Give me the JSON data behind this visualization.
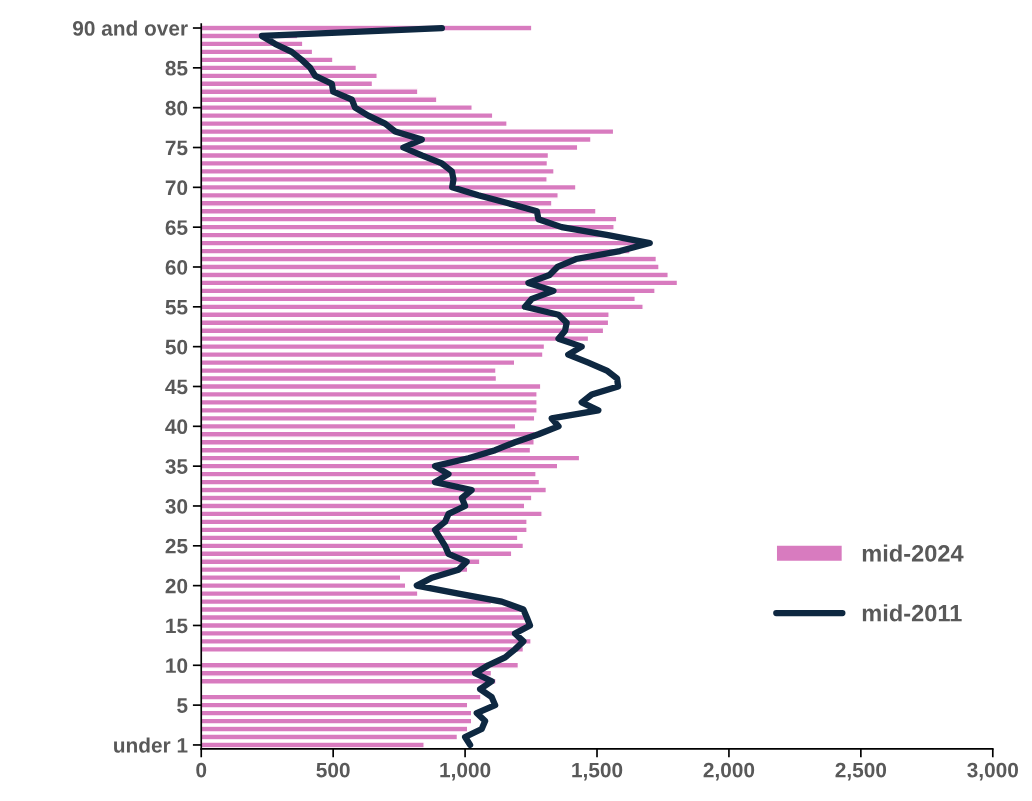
{
  "chart_data": {
    "type": "bar",
    "orientation": "horizontal",
    "categories": [
      "90 and over",
      null,
      null,
      null,
      null,
      "85",
      null,
      null,
      null,
      null,
      "80",
      null,
      null,
      null,
      null,
      "75",
      null,
      null,
      null,
      null,
      "70",
      null,
      null,
      null,
      null,
      "65",
      null,
      null,
      null,
      null,
      "60",
      null,
      null,
      null,
      null,
      "55",
      null,
      null,
      null,
      null,
      "50",
      null,
      null,
      null,
      null,
      "45",
      null,
      null,
      null,
      null,
      "40",
      null,
      null,
      null,
      null,
      "35",
      null,
      null,
      null,
      null,
      "30",
      null,
      null,
      null,
      null,
      "25",
      null,
      null,
      null,
      null,
      "20",
      null,
      null,
      null,
      null,
      "15",
      null,
      null,
      null,
      null,
      "10",
      null,
      null,
      null,
      null,
      "5",
      null,
      null,
      null,
      null,
      "under 1"
    ],
    "series": [
      {
        "name": "mid-2024",
        "color": "#d87bbf",
        "values": [
          1253,
          366,
          385,
          422,
          499,
          588,
          667,
          649,
          821,
          893,
          1027,
          1105,
          1159,
          1563,
          1477,
          1427,
          1316,
          1312,
          1337,
          1311,
          1420,
          1353,
          1329,
          1496,
          1575,
          1565,
          1545,
          1710,
          1625,
          1725,
          1735,
          1770,
          1805,
          1720,
          1645,
          1675,
          1546,
          1544,
          1525,
          1468,
          1301,
          1295,
          1188,
          1117,
          1119,
          1287,
          1273,
          1273,
          1273,
          1264,
          1192,
          1265,
          1262,
          1248,
          1434,
          1351,
          1269,
          1282,
          1308,
          1253,
          1226,
          1292,
          1235,
          1235,
          1200,
          1221,
          1177,
          1056,
          1010,
          756,
          775,
          821,
          1100,
          1215,
          1235,
          1239,
          1192,
          1250,
          1221,
          null,
          1202,
          1100,
          1117,
          null,
          1060,
          1010,
          1025,
          1025,
          1010,
          971,
          845
        ]
      },
      {
        "name": "mid-2011",
        "type": "line",
        "color": "#0e2841",
        "values": [
          912,
          230,
          280,
          343,
          381,
          413,
          432,
          495,
          500,
          571,
          583,
          633,
          697,
          735,
          836,
          766,
          836,
          912,
          950,
          956,
          951,
          1050,
          1164,
          1272,
          1278,
          1366,
          1542,
          1700,
          1587,
          1420,
          1350,
          1320,
          1240,
          1335,
          1253,
          1227,
          1354,
          1385,
          1379,
          1354,
          1442,
          1391,
          1467,
          1537,
          1576,
          1580,
          1480,
          1442,
          1505,
          1328,
          1354,
          1278,
          1189,
          1114,
          1013,
          886,
          937,
          886,
          1025,
          988,
          1000,
          937,
          924,
          886,
          905,
          924,
          937,
          1006,
          975,
          874,
          817,
          975,
          1139,
          1221,
          1234,
          1246,
          1189,
          1221,
          1189,
          1152,
          1088,
          1038,
          1101,
          1057,
          1101,
          1114,
          1044,
          1076,
          1063,
          1000,
          1019
        ]
      }
    ],
    "xlim": [
      0,
      3000
    ],
    "xticks": [
      0,
      500,
      {
        "value": 1000,
        "label": "1,000"
      },
      {
        "value": 1500,
        "label": "1,500"
      },
      {
        "value": 2000,
        "label": "2,000"
      },
      {
        "value": 2500,
        "label": "2,500"
      },
      {
        "value": 3000,
        "label": "3,000"
      }
    ],
    "grid": false,
    "legend": "bottom right",
    "line_style": "solid",
    "marker": "none"
  }
}
